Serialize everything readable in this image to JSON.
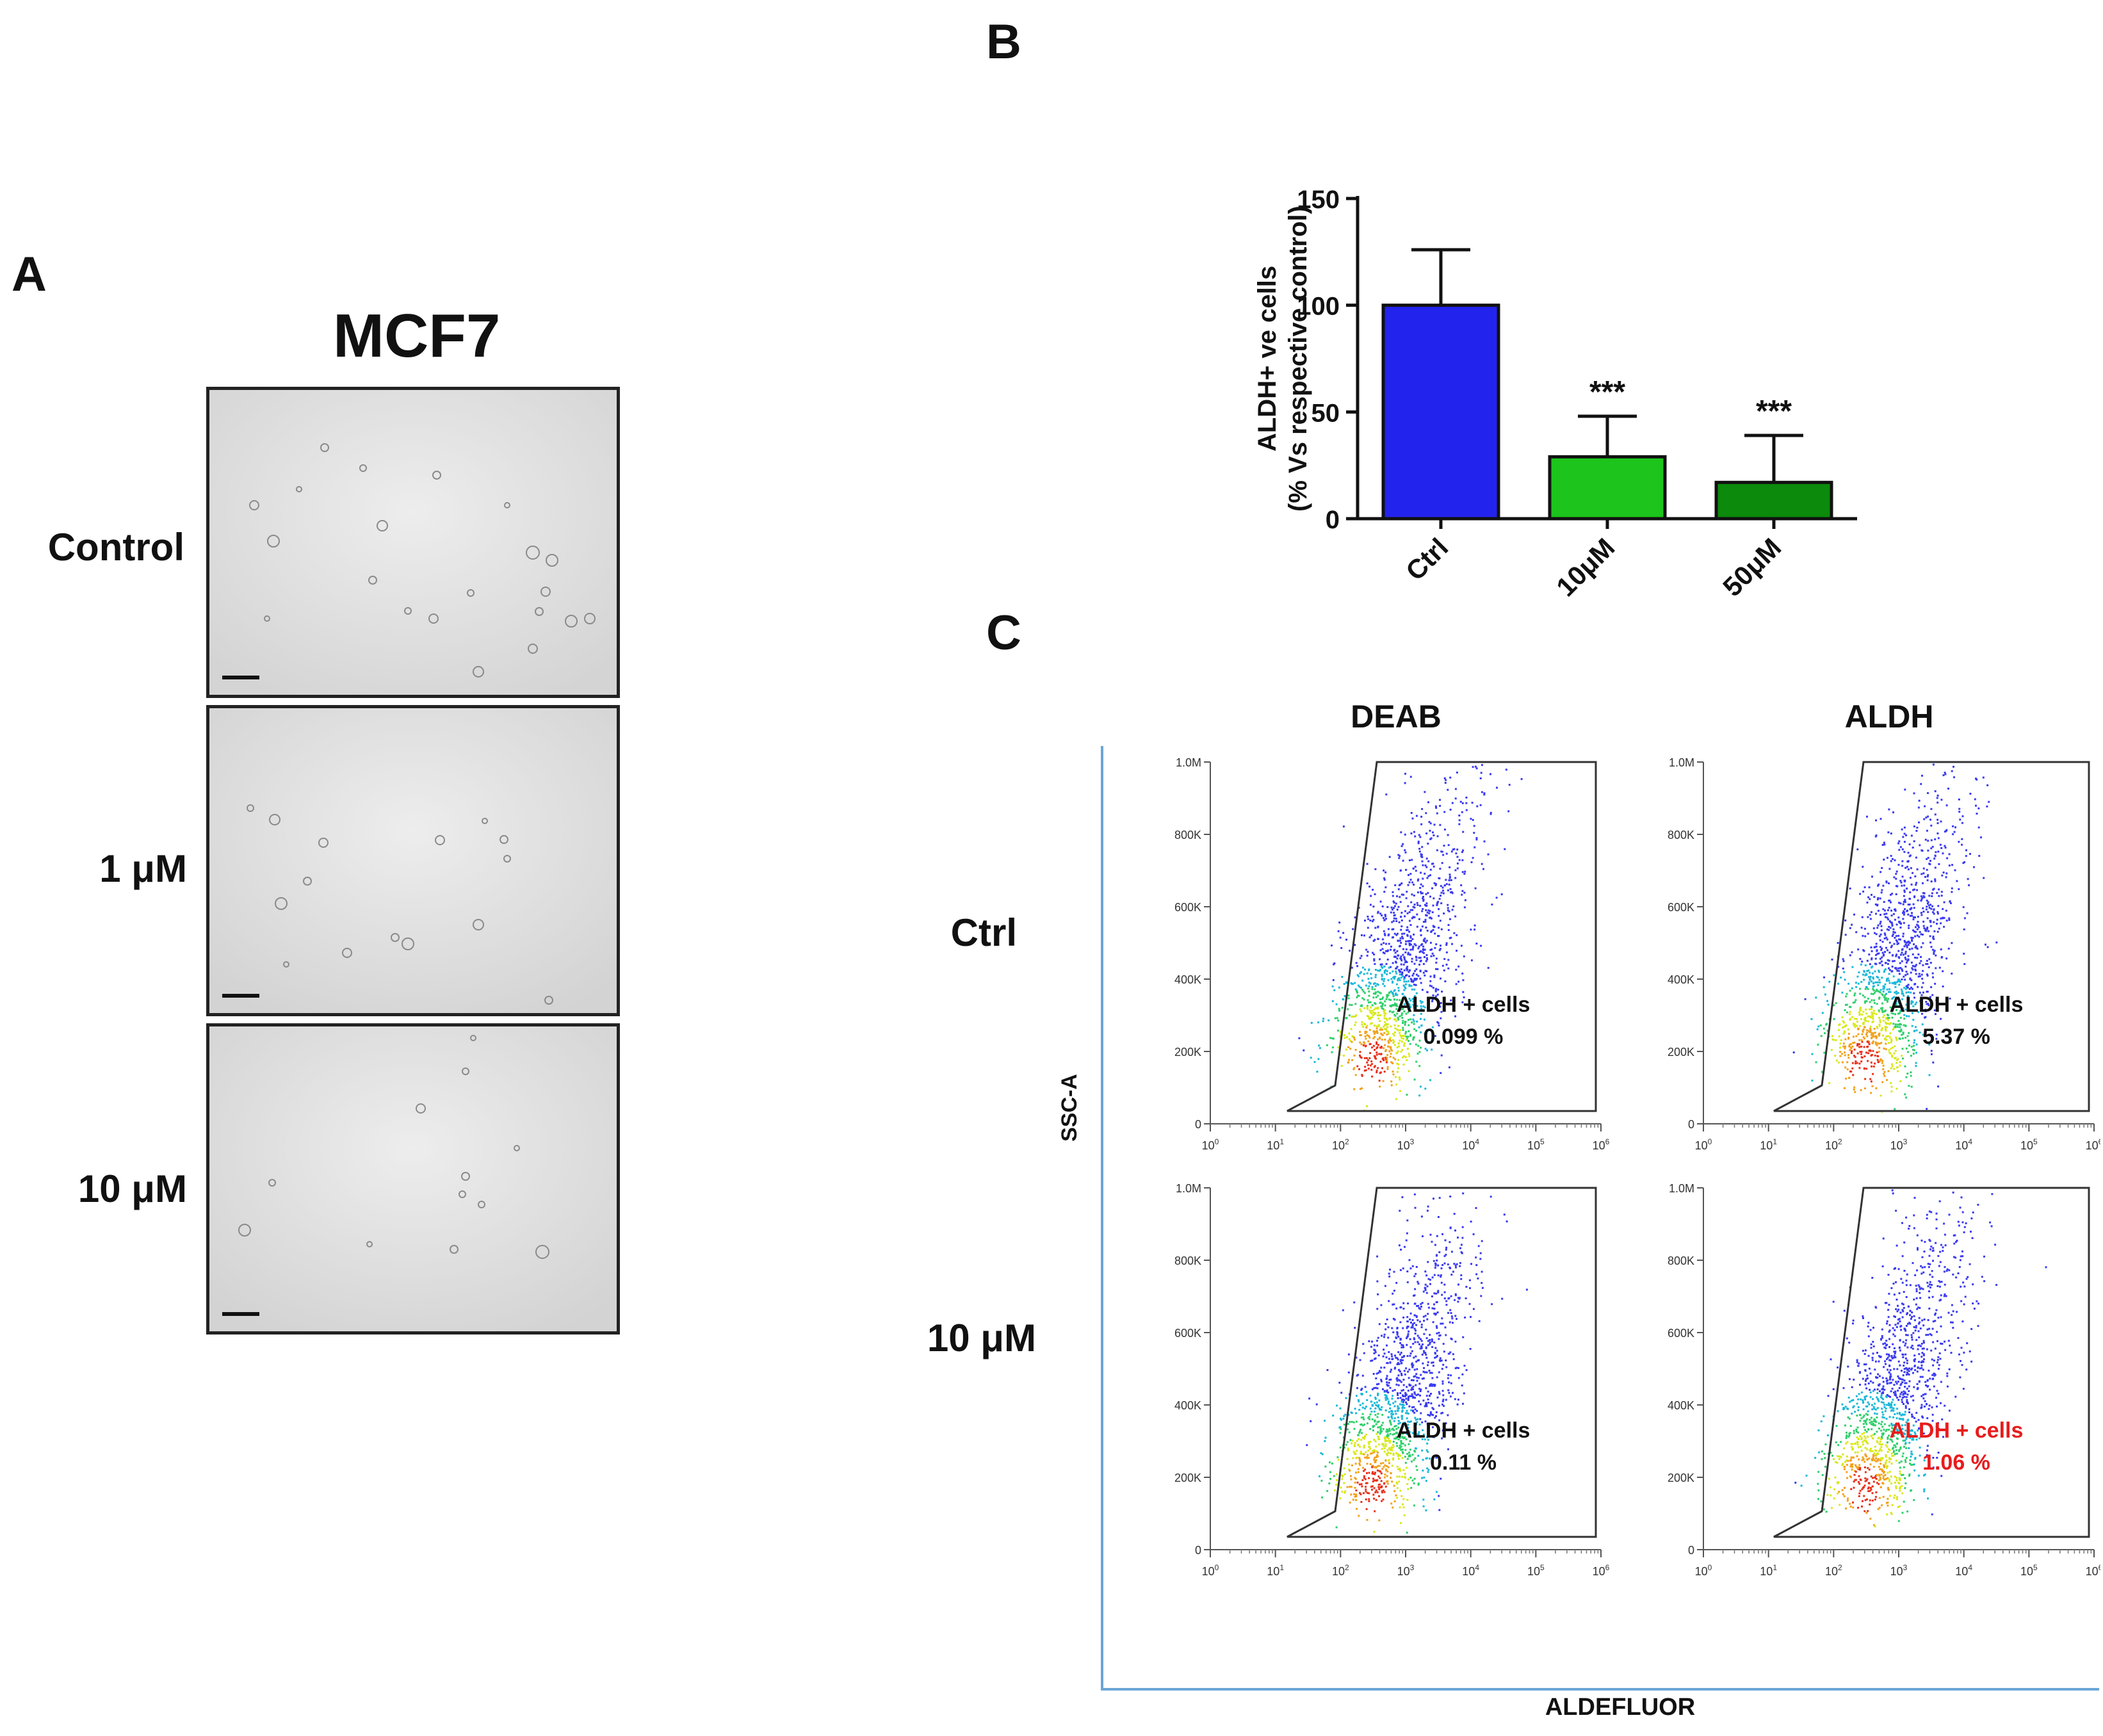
{
  "panels": {
    "a": "A",
    "b": "B",
    "c": "C"
  },
  "panel_a": {
    "title": "MCF7",
    "rows": [
      "Control",
      "1 μM",
      "10 μM"
    ]
  },
  "chart_data": {
    "type": "bar",
    "title": "",
    "ylabel_line1": "ALDH+ ve cells",
    "ylabel_line2": "(% Vs respective control)",
    "xlabel": "",
    "categories": [
      "Ctrl",
      "10μM",
      "50μM"
    ],
    "values": [
      100,
      29,
      17
    ],
    "errors": [
      26,
      19,
      22
    ],
    "significance": [
      "",
      "***",
      "***"
    ],
    "colors": [
      "#2323ee",
      "#1cc41c",
      "#0b8a0b"
    ],
    "ylim": [
      0,
      150
    ],
    "yticks": [
      0,
      50,
      100,
      150
    ]
  },
  "panel_c": {
    "col_heads": [
      "DEAB",
      "ALDH"
    ],
    "row_labels": [
      "Ctrl",
      "10 μM"
    ],
    "y_axis_label": "SSC-A",
    "x_axis_label": "ALDEFLUOR",
    "y_ticks": [
      "1.0M",
      "800K",
      "600K",
      "400K",
      "200K",
      "0"
    ],
    "x_ticks": [
      "0",
      "1",
      "2",
      "3",
      "4",
      "5",
      "6"
    ],
    "gate_label": "ALDH + cells",
    "plots": [
      {
        "label": "ALDH + cells",
        "percent": "0.099 %",
        "highlight": false
      },
      {
        "label": "ALDH + cells",
        "percent": "5.37 %",
        "highlight": false
      },
      {
        "label": "ALDH + cells",
        "percent": "0.11 %",
        "highlight": false
      },
      {
        "label": "ALDH + cells",
        "percent": "1.06 %",
        "highlight": true
      }
    ]
  },
  "colors": {
    "highlight": "#e81c1c",
    "frame": "#6aa6d6"
  }
}
